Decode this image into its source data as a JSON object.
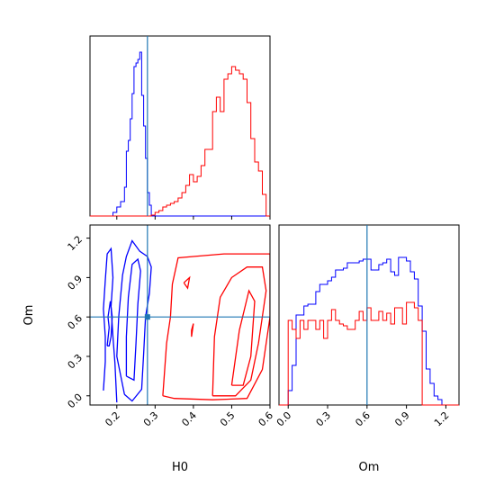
{
  "chart_data": {
    "type": "corner",
    "parameters": [
      "H0",
      "Om"
    ],
    "truths": {
      "H0": 0.28,
      "Om": 0.6
    },
    "truth_color": "#1f77b4",
    "series": [
      {
        "color": "#0000ff"
      },
      {
        "color": "#ff0000"
      }
    ],
    "axes": {
      "H0": {
        "label": "H0",
        "range": [
          0.13,
          0.6
        ],
        "ticks": [
          "0.2",
          "0.3",
          "0.4",
          "0.5",
          "0.6"
        ]
      },
      "Om": {
        "label": "Om",
        "range": [
          -0.07,
          1.3
        ],
        "ticks": [
          "0.0",
          "0.3",
          "0.6",
          "0.9",
          "1.2"
        ]
      }
    },
    "hist_H0": [
      {
        "series": 0,
        "edges": [
          0.13,
          0.19,
          0.2,
          0.21,
          0.22,
          0.225,
          0.23,
          0.235,
          0.24,
          0.245,
          0.25,
          0.255,
          0.26,
          0.265,
          0.27,
          0.275,
          0.28,
          0.285,
          0.29,
          0.6
        ],
        "counts": [
          0,
          0.02,
          0.05,
          0.08,
          0.16,
          0.36,
          0.42,
          0.54,
          0.68,
          0.83,
          0.85,
          0.87,
          0.91,
          0.67,
          0.5,
          0.32,
          0.13,
          0.06,
          0
        ]
      },
      {
        "series": 1,
        "edges": [
          0.13,
          0.29,
          0.3,
          0.31,
          0.32,
          0.33,
          0.34,
          0.35,
          0.36,
          0.37,
          0.38,
          0.39,
          0.4,
          0.41,
          0.42,
          0.43,
          0.44,
          0.45,
          0.46,
          0.47,
          0.48,
          0.49,
          0.5,
          0.51,
          0.52,
          0.53,
          0.54,
          0.55,
          0.56,
          0.57,
          0.58,
          0.59,
          0.6
        ],
        "counts": [
          0,
          0.005,
          0.02,
          0.03,
          0.05,
          0.06,
          0.07,
          0.08,
          0.1,
          0.13,
          0.17,
          0.23,
          0.19,
          0.22,
          0.28,
          0.37,
          0.37,
          0.58,
          0.66,
          0.58,
          0.76,
          0.79,
          0.83,
          0.81,
          0.79,
          0.76,
          0.63,
          0.43,
          0.3,
          0.25,
          0.12,
          0
        ]
      }
    ],
    "hist_Om": [
      {
        "series": 0,
        "edges": [
          -0.07,
          0.0,
          0.03,
          0.06,
          0.09,
          0.12,
          0.15,
          0.18,
          0.21,
          0.24,
          0.27,
          0.3,
          0.33,
          0.36,
          0.39,
          0.42,
          0.45,
          0.48,
          0.51,
          0.54,
          0.57,
          0.6,
          0.63,
          0.66,
          0.69,
          0.72,
          0.75,
          0.78,
          0.81,
          0.84,
          0.87,
          0.9,
          0.93,
          0.96,
          0.99,
          1.02,
          1.05,
          1.08,
          1.11,
          1.14,
          1.17,
          1.3
        ],
        "counts": [
          0,
          0.08,
          0.22,
          0.5,
          0.5,
          0.55,
          0.56,
          0.56,
          0.63,
          0.67,
          0.67,
          0.69,
          0.71,
          0.75,
          0.75,
          0.76,
          0.79,
          0.79,
          0.79,
          0.8,
          0.81,
          0.81,
          0.75,
          0.75,
          0.78,
          0.79,
          0.81,
          0.74,
          0.72,
          0.82,
          0.82,
          0.8,
          0.74,
          0.7,
          0.55,
          0.41,
          0.2,
          0.12,
          0.05,
          0.03,
          0
        ]
      },
      {
        "series": 1,
        "edges": [
          -0.07,
          0.0,
          0.03,
          0.06,
          0.09,
          0.12,
          0.15,
          0.18,
          0.21,
          0.24,
          0.27,
          0.3,
          0.33,
          0.36,
          0.39,
          0.42,
          0.45,
          0.48,
          0.51,
          0.54,
          0.57,
          0.6,
          0.63,
          0.66,
          0.69,
          0.72,
          0.75,
          0.78,
          0.81,
          0.84,
          0.87,
          0.9,
          0.93,
          0.96,
          0.99,
          1.02,
          1.3
        ],
        "counts": [
          0,
          0.47,
          0.42,
          0.37,
          0.47,
          0.42,
          0.47,
          0.47,
          0.42,
          0.47,
          0.37,
          0.47,
          0.53,
          0.47,
          0.45,
          0.44,
          0.42,
          0.42,
          0.47,
          0.52,
          0.47,
          0.54,
          0.47,
          0.47,
          0.52,
          0.47,
          0.51,
          0.45,
          0.54,
          0.54,
          0.45,
          0.57,
          0.57,
          0.54,
          0.47,
          0
        ]
      }
    ],
    "contours": [
      {
        "series": 0,
        "points": [
          [
            0.165,
            0.04
          ],
          [
            0.17,
            0.26
          ],
          [
            0.17,
            0.45
          ],
          [
            0.165,
            0.66
          ],
          [
            0.17,
            0.88
          ],
          [
            0.175,
            1.08
          ],
          [
            0.185,
            1.12
          ],
          [
            0.19,
            0.9
          ],
          [
            0.185,
            0.68
          ],
          [
            0.19,
            0.45
          ],
          [
            0.195,
            0.25
          ],
          [
            0.2,
            -0.05
          ]
        ]
      },
      {
        "series": 0,
        "points": [
          [
            0.175,
            0.38
          ],
          [
            0.18,
            0.52
          ],
          [
            0.177,
            0.6
          ],
          [
            0.183,
            0.72
          ],
          [
            0.188,
            0.6
          ],
          [
            0.185,
            0.45
          ],
          [
            0.18,
            0.38
          ],
          [
            0.175,
            0.38
          ]
        ]
      },
      {
        "series": 0,
        "points": [
          [
            0.22,
            0.01
          ],
          [
            0.2,
            0.3
          ],
          [
            0.205,
            0.6
          ],
          [
            0.215,
            0.92
          ],
          [
            0.225,
            1.06
          ],
          [
            0.24,
            1.18
          ],
          [
            0.26,
            1.1
          ],
          [
            0.28,
            1.06
          ],
          [
            0.29,
            0.98
          ],
          [
            0.285,
            0.78
          ],
          [
            0.275,
            0.6
          ],
          [
            0.27,
            0.32
          ],
          [
            0.265,
            0.05
          ],
          [
            0.24,
            -0.04
          ],
          [
            0.22,
            0.01
          ]
        ]
      },
      {
        "series": 0,
        "points": [
          [
            0.225,
            0.15
          ],
          [
            0.225,
            0.45
          ],
          [
            0.23,
            0.75
          ],
          [
            0.24,
            1.0
          ],
          [
            0.255,
            1.04
          ],
          [
            0.262,
            0.95
          ],
          [
            0.255,
            0.7
          ],
          [
            0.25,
            0.4
          ],
          [
            0.245,
            0.12
          ],
          [
            0.225,
            0.15
          ]
        ]
      },
      {
        "series": 1,
        "points": [
          [
            0.32,
            0.0
          ],
          [
            0.33,
            0.4
          ],
          [
            0.34,
            0.6
          ],
          [
            0.345,
            0.85
          ],
          [
            0.36,
            1.05
          ],
          [
            0.4,
            1.06
          ],
          [
            0.48,
            1.08
          ],
          [
            0.6,
            1.08
          ],
          [
            0.6,
            0.6
          ],
          [
            0.58,
            0.2
          ],
          [
            0.54,
            -0.02
          ],
          [
            0.45,
            -0.03
          ],
          [
            0.35,
            -0.02
          ],
          [
            0.32,
            0.0
          ]
        ]
      },
      {
        "series": 1,
        "points": [
          [
            0.45,
            0.0
          ],
          [
            0.455,
            0.45
          ],
          [
            0.47,
            0.75
          ],
          [
            0.5,
            0.9
          ],
          [
            0.54,
            0.98
          ],
          [
            0.58,
            0.98
          ],
          [
            0.59,
            0.8
          ],
          [
            0.57,
            0.4
          ],
          [
            0.55,
            0.12
          ],
          [
            0.51,
            0.0
          ],
          [
            0.45,
            0.0
          ]
        ]
      },
      {
        "series": 1,
        "points": [
          [
            0.5,
            0.08
          ],
          [
            0.52,
            0.5
          ],
          [
            0.545,
            0.8
          ],
          [
            0.56,
            0.72
          ],
          [
            0.55,
            0.3
          ],
          [
            0.53,
            0.08
          ],
          [
            0.5,
            0.08
          ]
        ]
      },
      {
        "series": 1,
        "points": [
          [
            0.375,
            0.86
          ],
          [
            0.39,
            0.9
          ],
          [
            0.385,
            0.82
          ],
          [
            0.375,
            0.86
          ]
        ]
      },
      {
        "series": 1,
        "points": [
          [
            0.395,
            0.5
          ],
          [
            0.4,
            0.55
          ],
          [
            0.395,
            0.45
          ],
          [
            0.395,
            0.5
          ]
        ]
      }
    ]
  }
}
